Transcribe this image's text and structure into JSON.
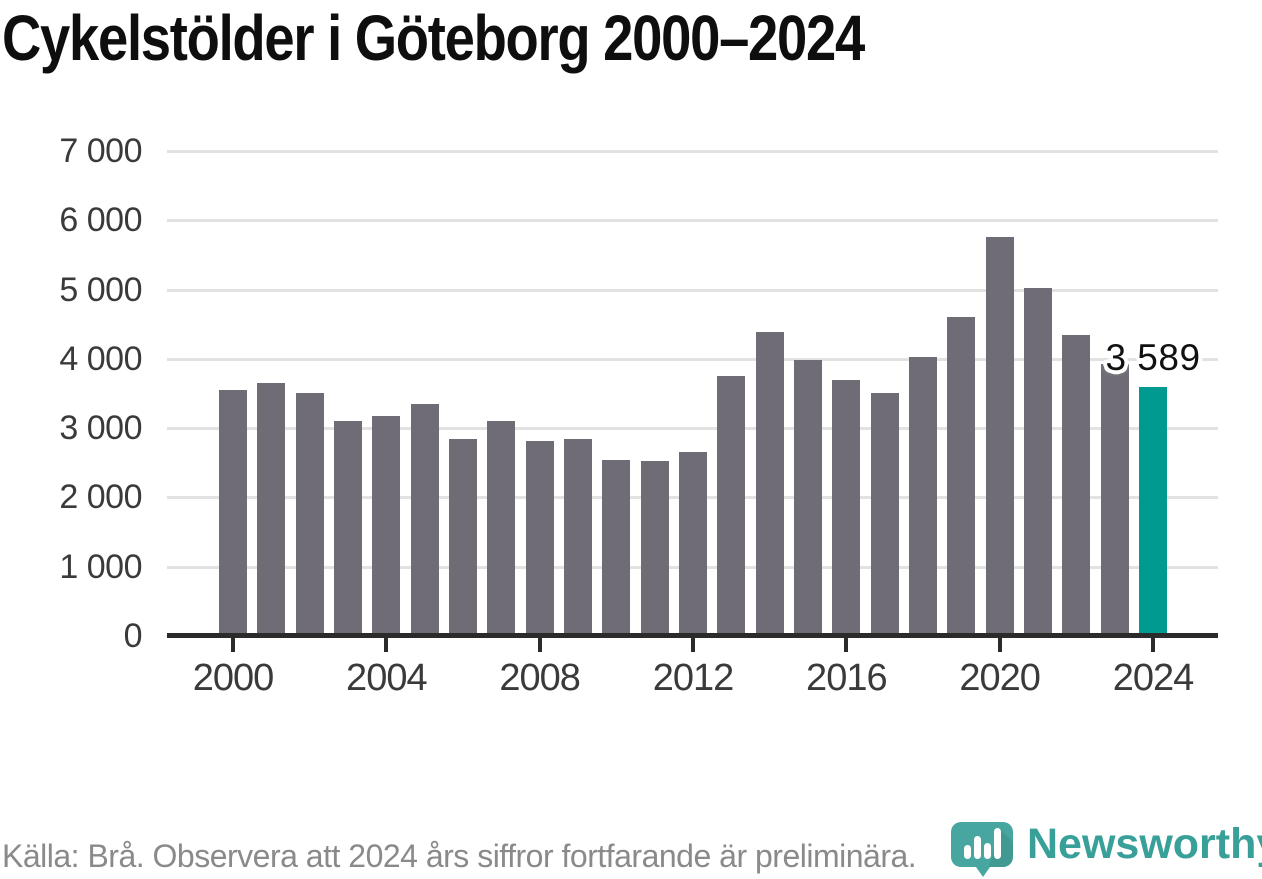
{
  "title": "Cykelstölder i Göteborg 2000–2024",
  "chart_data": {
    "type": "bar",
    "x": [
      2000,
      2001,
      2002,
      2003,
      2004,
      2005,
      2006,
      2007,
      2008,
      2009,
      2010,
      2011,
      2012,
      2013,
      2014,
      2015,
      2016,
      2017,
      2018,
      2019,
      2020,
      2021,
      2022,
      2023,
      2024
    ],
    "values": [
      3550,
      3650,
      3510,
      3100,
      3170,
      3350,
      2840,
      3100,
      2820,
      2850,
      2540,
      2530,
      2650,
      3760,
      4390,
      3990,
      3700,
      3510,
      4030,
      4600,
      5760,
      5020,
      4350,
      3930,
      3589
    ],
    "highlight": {
      "year": 2024,
      "value": 3589,
      "label": "3 589"
    },
    "ylim": [
      0,
      7000
    ],
    "grid": true,
    "legend": "none",
    "yticks": [
      {
        "value": 0,
        "label": "0"
      },
      {
        "value": 1000,
        "label": "1 000"
      },
      {
        "value": 2000,
        "label": "2 000"
      },
      {
        "value": 3000,
        "label": "3 000"
      },
      {
        "value": 4000,
        "label": "4 000"
      },
      {
        "value": 5000,
        "label": "5 000"
      },
      {
        "value": 6000,
        "label": "6 000"
      },
      {
        "value": 7000,
        "label": "7 000"
      }
    ],
    "xticks": [
      {
        "value": 2000,
        "label": "2000"
      },
      {
        "value": 2004,
        "label": "2004"
      },
      {
        "value": 2008,
        "label": "2008"
      },
      {
        "value": 2012,
        "label": "2012"
      },
      {
        "value": 2016,
        "label": "2016"
      },
      {
        "value": 2020,
        "label": "2020"
      },
      {
        "value": 2024,
        "label": "2024"
      }
    ],
    "colors": {
      "bar": "#706c75",
      "highlight": "#009a91",
      "grid": "#e2e2e2",
      "axis": "#2b2b2b",
      "tick_text": "#3a3a3a"
    }
  },
  "footer": {
    "source_text": "Källa: Brå. Observera att 2024 års siffror fortfarande är preliminära."
  },
  "logo": {
    "brand": "Newsworthy",
    "icon": "newsworthy-speech-bubble-chart-icon",
    "icon_color": "#47a69f",
    "wordmark_color": "#38a098"
  }
}
